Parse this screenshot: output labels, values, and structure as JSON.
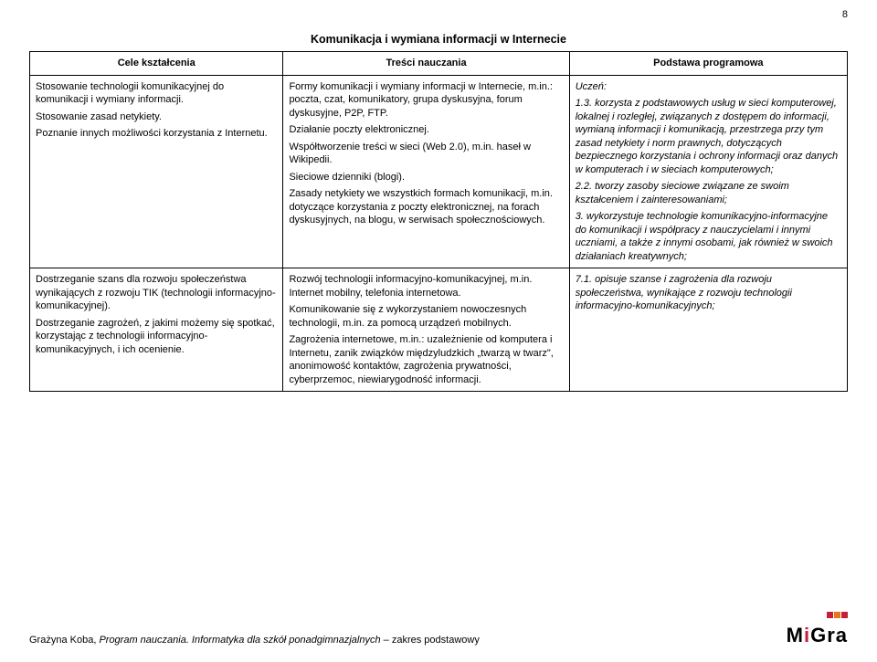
{
  "page_number": "8",
  "section_title": "Komunikacja i wymiana informacji w Internecie",
  "headers": {
    "col1": "Cele kształcenia",
    "col2": "Treści nauczania",
    "col3": "Podstawa programowa"
  },
  "rows": [
    {
      "c1": [
        "Stosowanie technologii komunikacyjnej do komunikacji i wymiany informacji.",
        "Stosowanie zasad netykiety.",
        "Poznanie innych możliwości korzystania z Internetu."
      ],
      "c2": [
        "Formy komunikacji i wymiany informacji w Internecie, m.in.: poczta, czat, komunikatory, grupa dyskusyjna, forum dyskusyjne, P2P, FTP.",
        "Działanie poczty elektronicznej.",
        "Współtworzenie treści w sieci (Web 2.0), m.in. haseł w Wikipedii.",
        "Sieciowe dzienniki (blogi).",
        "Zasady netykiety we wszystkich formach komunikacji, m.in. dotyczące korzystania z poczty elektronicznej, na forach dyskusyjnych, na blogu, w serwisach społecznościowych."
      ],
      "c3": [
        {
          "text": "Uczeń:",
          "italic": true
        },
        {
          "text": "1.3. korzysta z podstawowych usług w sieci komputerowej, lokalnej i rozległej, związanych z dostępem do informacji, wymianą informacji i komunikacją, przestrzega przy tym zasad netykiety i norm prawnych, dotyczących bezpiecznego korzystania i ochrony informacji oraz danych w komputerach i w sieciach komputerowych;",
          "italic": true
        },
        {
          "text": "2.2. tworzy zasoby sieciowe związane ze swoim kształceniem i zainteresowaniami;",
          "italic": true
        },
        {
          "text": "3. wykorzystuje technologie komunikacyjno-informacyjne do komunikacji i współpracy z nauczycielami i innymi uczniami, a także z innymi osobami, jak również w swoich działaniach kreatywnych;",
          "italic": true
        }
      ]
    },
    {
      "c1": [
        "Dostrzeganie szans dla rozwoju społeczeństwa wynikających z rozwoju TIK (technologii informacyjno-komunikacyjnej).",
        "Dostrzeganie zagrożeń, z jakimi możemy się spotkać, korzystając z technologii informacyjno-komunikacyjnych, i ich ocenienie."
      ],
      "c2": [
        "Rozwój technologii informacyjno-komunikacyjnej, m.in. Internet mobilny, telefonia internetowa.",
        "Komunikowanie się z wykorzystaniem nowoczesnych technologii, m.in. za pomocą urządzeń mobilnych.",
        "Zagrożenia internetowe, m.in.: uzależnienie od komputera i Internetu, zanik związków międzyludzkich „twarzą w twarz\", anonimowość kontaktów, zagrożenia prywatności, cyberprzemoc, niewiarygodność informacji."
      ],
      "c3": [
        {
          "text": "7.1. opisuje szanse i zagrożenia dla rozwoju społeczeństwa, wynikające z rozwoju technologii informacyjno-komunikacyjnych;",
          "italic": true
        }
      ]
    }
  ],
  "footer": {
    "author": "Grażyna Koba,",
    "title_1": "Program nauczania. Informatyka dla szkół ponadgimnazjalnych",
    "title_2": "– zakres podstawowy",
    "logo_text": "MiGra"
  }
}
